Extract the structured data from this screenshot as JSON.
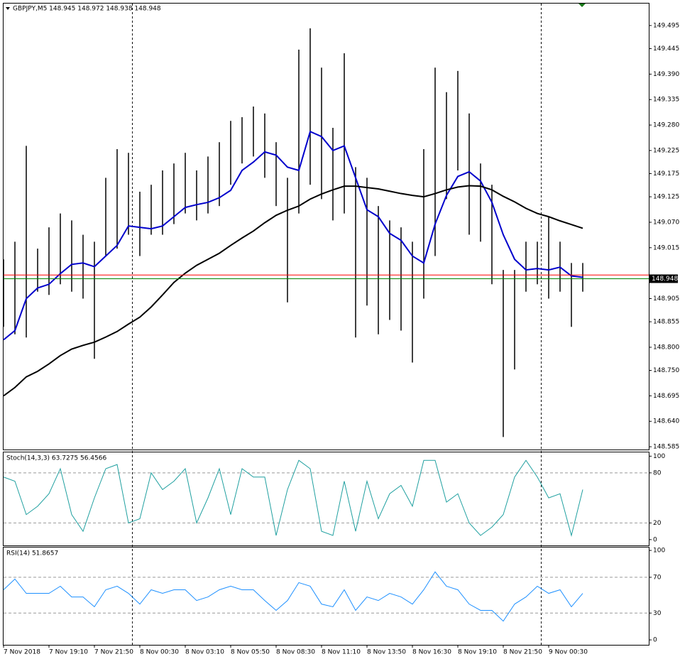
{
  "chart_data": [
    {
      "type": "price",
      "title": "GBPJPY,M5  148.945 148.972 148.938 148.948",
      "categories": [
        "7 Nov 2018",
        null,
        null,
        null,
        "7 Nov 19:10",
        null,
        null,
        null,
        "7 Nov 21:50",
        null,
        null,
        null,
        "8 Nov 00:30",
        null,
        null,
        null,
        "8 Nov 03:10",
        null,
        null,
        null,
        "8 Nov 05:50",
        null,
        null,
        null,
        "8 Nov 08:30",
        null,
        null,
        null,
        "8 Nov 11:10",
        null,
        null,
        null,
        "8 Nov 13:50",
        null,
        null,
        null,
        "8 Nov 16:30",
        null,
        null,
        null,
        "8 Nov 19:10",
        null,
        null,
        null,
        "8 Nov 21:50",
        null,
        null,
        null,
        "9 Nov 00:30",
        null,
        null,
        null
      ],
      "high": [
        148.99,
        149.028,
        149.235,
        149.013,
        149.059,
        149.089,
        149.074,
        149.043,
        149.028,
        149.166,
        149.228,
        149.22,
        149.136,
        149.151,
        149.182,
        149.197,
        149.22,
        149.182,
        149.212,
        149.243,
        149.289,
        149.297,
        149.32,
        149.305,
        149.243,
        149.166,
        149.443,
        149.489,
        149.404,
        149.274,
        149.435,
        149.189,
        149.166,
        149.105,
        149.074,
        149.059,
        149.028,
        149.228,
        149.404,
        149.351,
        149.397,
        149.305,
        149.197,
        149.151,
        148.967,
        148.967,
        149.028,
        149.028,
        149.082,
        149.028,
        148.982,
        148.982
      ],
      "low": [
        148.844,
        148.828,
        148.821,
        148.92,
        148.913,
        148.936,
        148.92,
        148.905,
        148.775,
        148.997,
        149.013,
        149.043,
        148.997,
        149.043,
        149.043,
        149.066,
        149.089,
        149.074,
        149.089,
        149.105,
        149.151,
        149.197,
        149.212,
        149.166,
        149.105,
        148.897,
        149.089,
        149.151,
        149.12,
        149.074,
        149.089,
        148.821,
        148.89,
        148.828,
        148.859,
        148.836,
        148.767,
        148.905,
        148.997,
        149.12,
        149.182,
        149.043,
        149.028,
        148.936,
        148.606,
        148.752,
        148.92,
        148.936,
        148.905,
        148.92,
        148.844,
        148.92
      ],
      "bar_color": "#000000",
      "moving_averages": [
        {
          "color": "#0000cc",
          "values": [
            148.816,
            148.836,
            148.905,
            148.928,
            148.936,
            148.959,
            148.979,
            148.982,
            148.974,
            148.997,
            149.02,
            149.062,
            149.059,
            149.056,
            149.062,
            149.082,
            149.102,
            149.108,
            149.113,
            149.123,
            149.139,
            149.182,
            149.2,
            149.222,
            149.215,
            149.189,
            149.182,
            149.266,
            149.255,
            149.225,
            149.235,
            149.166,
            149.097,
            149.082,
            149.046,
            149.031,
            148.997,
            148.982,
            149.066,
            149.128,
            149.169,
            149.179,
            149.159,
            149.113,
            149.043,
            148.99,
            148.967,
            148.97,
            148.967,
            148.973,
            148.954,
            148.951
          ]
        },
        {
          "color": "#000000",
          "values": [
            148.695,
            148.713,
            148.736,
            148.748,
            148.764,
            148.782,
            148.796,
            148.804,
            148.811,
            148.822,
            148.834,
            148.85,
            148.865,
            148.887,
            148.913,
            148.94,
            148.96,
            148.977,
            148.99,
            149.003,
            149.02,
            149.036,
            149.051,
            149.069,
            149.085,
            149.096,
            149.105,
            149.12,
            149.131,
            149.14,
            149.148,
            149.148,
            149.145,
            149.142,
            149.137,
            149.132,
            149.128,
            149.125,
            149.132,
            149.14,
            149.146,
            149.149,
            149.148,
            149.14,
            149.126,
            149.114,
            149.1,
            149.089,
            149.082,
            149.073,
            149.065,
            149.057
          ]
        }
      ],
      "bid": 148.948,
      "bid_color": "#008000",
      "ask": 148.956,
      "ask_color": "#ff0000",
      "ylim": [
        148.579,
        149.544
      ],
      "yticks": [
        149.495,
        149.445,
        {
          "value": 149.39,
          "label": "149.390"
        },
        149.335,
        {
          "value": 149.28,
          "label": "149.280"
        },
        149.225,
        149.175,
        149.125,
        {
          "value": 149.07,
          "label": "149.070"
        },
        149.015,
        148.905,
        148.855,
        {
          "value": 148.8,
          "label": "148.800"
        },
        {
          "value": 148.75,
          "label": "148.750"
        },
        148.695,
        {
          "value": 148.64,
          "label": "148.640"
        },
        148.585
      ]
    },
    {
      "type": "oscillator",
      "title": "Stoch(14,3,3) 63.7275 56.4566",
      "color": "#20a0a0",
      "values": [
        75,
        70,
        30,
        40,
        55,
        85,
        30,
        10,
        50,
        85,
        90,
        20,
        25,
        80,
        60,
        70,
        85,
        20,
        50,
        85,
        30,
        85,
        75,
        75,
        5,
        60,
        95,
        85,
        10,
        5,
        70,
        10,
        70,
        25,
        55,
        65,
        40,
        95,
        95,
        45,
        55,
        20,
        5,
        15,
        30,
        75,
        95,
        75,
        50,
        55,
        5,
        60
      ],
      "levels": [
        80,
        20
      ],
      "ylim": [
        -6.9,
        105.4
      ],
      "yticks": [
        100,
        80,
        20,
        0
      ]
    },
    {
      "type": "oscillator",
      "title": "RSI(14) 51.8657",
      "color": "#1e90ff",
      "values": [
        56,
        68,
        52,
        52,
        52,
        60,
        48,
        48,
        37,
        56,
        60,
        52,
        40,
        56,
        52,
        56,
        56,
        44,
        48,
        56,
        60,
        56,
        56,
        44,
        33,
        44,
        64,
        60,
        40,
        37,
        56,
        33,
        48,
        44,
        52,
        48,
        40,
        56,
        76,
        60,
        56,
        40,
        33,
        33,
        21,
        40,
        48,
        60,
        52,
        56,
        37,
        52
      ],
      "levels": [
        70,
        30
      ],
      "ylim": [
        -5.5,
        104
      ],
      "yticks": [
        100,
        70,
        30,
        0
      ]
    }
  ]
}
